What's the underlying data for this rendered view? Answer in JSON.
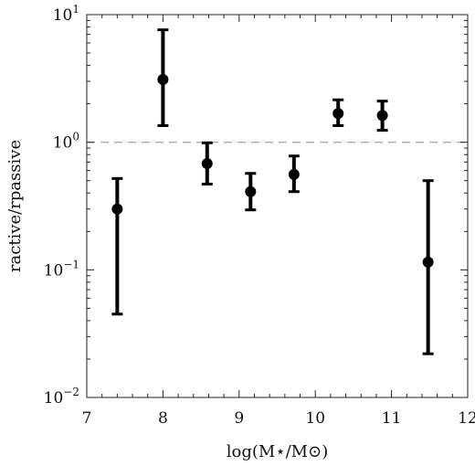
{
  "chart_data": {
    "type": "scatter",
    "title": "",
    "xlabel": "log(M⋆/M⊙)",
    "ylabel": "ractive/rpassive",
    "xlim": [
      7,
      12
    ],
    "ylim": [
      0.01,
      10
    ],
    "yscale": "log",
    "grid": false,
    "xticks": [
      {
        "value": 7,
        "label": "7"
      },
      {
        "value": 8,
        "label": "8"
      },
      {
        "value": 9,
        "label": "9"
      },
      {
        "value": 10,
        "label": "10"
      },
      {
        "value": 11,
        "label": "11"
      },
      {
        "value": 12,
        "label": "12"
      }
    ],
    "yticks": [
      {
        "value": 0.01,
        "base": "10",
        "exp": "−2"
      },
      {
        "value": 0.1,
        "base": "10",
        "exp": "−1"
      },
      {
        "value": 1,
        "base": "10",
        "exp": "0"
      },
      {
        "value": 10,
        "base": "10",
        "exp": "1"
      }
    ],
    "reference_line": {
      "y": 1,
      "style": "dashed",
      "color": "#aaaaaa"
    },
    "points": [
      {
        "x": 7.4,
        "y": 0.3,
        "ylow": 0.045,
        "yhigh": 0.52
      },
      {
        "x": 8.0,
        "y": 3.1,
        "ylow": 1.35,
        "yhigh": 7.6
      },
      {
        "x": 8.58,
        "y": 0.68,
        "ylow": 0.47,
        "yhigh": 0.99
      },
      {
        "x": 9.15,
        "y": 0.41,
        "ylow": 0.295,
        "yhigh": 0.57
      },
      {
        "x": 9.72,
        "y": 0.56,
        "ylow": 0.41,
        "yhigh": 0.78
      },
      {
        "x": 10.3,
        "y": 1.68,
        "ylow": 1.35,
        "yhigh": 2.15
      },
      {
        "x": 10.88,
        "y": 1.62,
        "ylow": 1.24,
        "yhigh": 2.1
      },
      {
        "x": 11.48,
        "y": 0.115,
        "ylow": 0.022,
        "yhigh": 0.5
      }
    ],
    "marker_color": "#000000"
  }
}
